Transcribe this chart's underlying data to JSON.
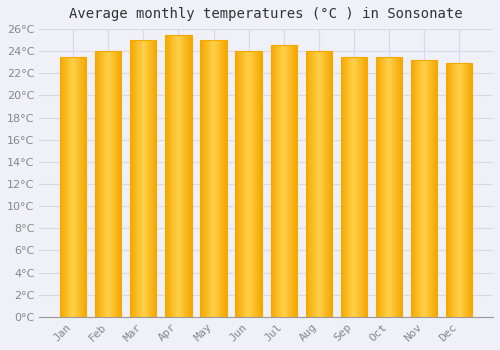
{
  "title": "Average monthly temperatures (°C ) in Sonsonate",
  "months": [
    "Jan",
    "Feb",
    "Mar",
    "Apr",
    "May",
    "Jun",
    "Jul",
    "Aug",
    "Sep",
    "Oct",
    "Nov",
    "Dec"
  ],
  "values": [
    23.5,
    24.0,
    25.0,
    25.5,
    25.0,
    24.0,
    24.6,
    24.0,
    23.5,
    23.5,
    23.2,
    22.9
  ],
  "bar_color_center": "#FFD04A",
  "bar_color_edge": "#F5A800",
  "background_color": "#f0f0f8",
  "plot_bg_color": "#f0f0f8",
  "grid_color": "#d8d8e8",
  "ylim": [
    0,
    26
  ],
  "ytick_step": 2,
  "title_fontsize": 10,
  "tick_fontsize": 8,
  "tick_color": "#888888",
  "bar_width": 0.75,
  "figsize": [
    5.0,
    3.5
  ],
  "dpi": 100
}
